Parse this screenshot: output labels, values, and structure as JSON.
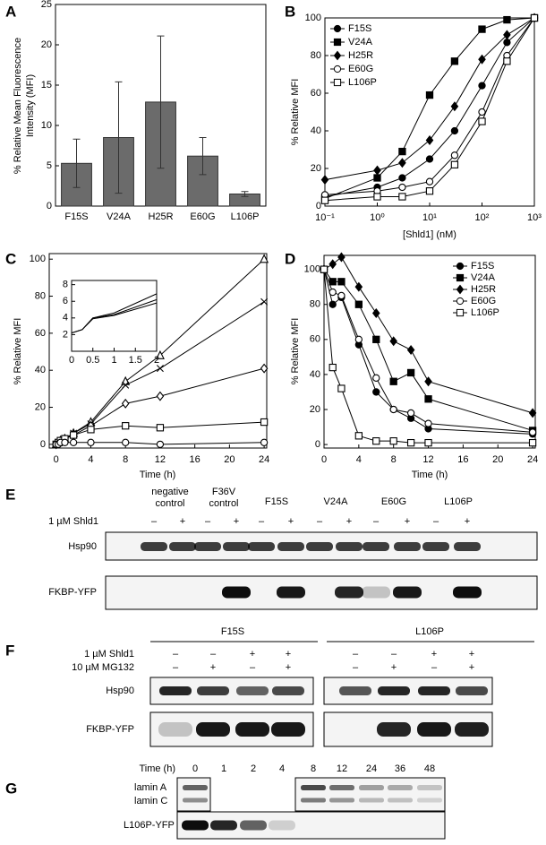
{
  "chart_data": [
    {
      "panel": "A",
      "type": "bar",
      "ylabel": [
        "% Relative Mean Fluorescence",
        "Intensity (MFI)"
      ],
      "categories": [
        "F15S",
        "V24A",
        "H25R",
        "E60G",
        "L106P"
      ],
      "values": [
        5.3,
        8.5,
        12.9,
        6.2,
        1.5
      ],
      "errors": [
        3.0,
        6.9,
        8.2,
        2.3,
        0.3
      ],
      "color": "#6b6b6b",
      "ylim": [
        0,
        25
      ],
      "yticks": [
        0,
        5,
        10,
        15,
        20,
        25
      ]
    },
    {
      "panel": "B",
      "type": "line",
      "xlog": true,
      "xlabel": "[Shld1] (nM)",
      "ylabel": "% Relative MFI",
      "x": [
        0.1,
        1,
        3,
        10,
        30,
        100,
        300,
        1000
      ],
      "xlim": [
        0.1,
        1000
      ],
      "xticks": [
        {
          "value": 0.1,
          "label": "10⁻¹"
        },
        {
          "value": 1,
          "label": "10⁰"
        },
        {
          "value": 10,
          "label": "10¹"
        },
        {
          "value": 100,
          "label": "10²"
        },
        {
          "value": 1000,
          "label": "10³"
        }
      ],
      "ylim": [
        0,
        100
      ],
      "yticks": [
        0,
        20,
        40,
        60,
        80,
        100
      ],
      "legend": "upper left",
      "series": [
        {
          "name": "F15S",
          "color": "#000000",
          "marker": "filled-circle",
          "values": [
            5,
            10,
            15,
            25,
            40,
            64,
            87,
            100
          ]
        },
        {
          "name": "V24A",
          "color": "#000000",
          "marker": "filled-square",
          "values": [
            4,
            15,
            29,
            59,
            77,
            94,
            99,
            100
          ]
        },
        {
          "name": "H25R",
          "color": "#000000",
          "marker": "diamond",
          "values": [
            14,
            19,
            23,
            35,
            53,
            78,
            91,
            100
          ]
        },
        {
          "name": "E60G",
          "color": "#000000",
          "marker": "open-circle",
          "values": [
            6,
            8,
            10,
            13,
            27,
            50,
            80,
            100
          ]
        },
        {
          "name": "L106P",
          "color": "#000000",
          "marker": "open-square",
          "values": [
            3,
            5,
            5,
            8,
            22,
            45,
            77,
            100
          ]
        }
      ]
    },
    {
      "panel": "C",
      "type": "line",
      "xlabel": "Time (h)",
      "ylabel": "% Relative MFI",
      "x": [
        0,
        0.25,
        0.5,
        1,
        2,
        4,
        8,
        12,
        24
      ],
      "xlim": [
        -0.8,
        24.3
      ],
      "xticks": [
        0,
        4,
        8,
        12,
        16,
        20,
        24
      ],
      "ylim": [
        -2,
        103
      ],
      "yticks": [
        0,
        20,
        40,
        60,
        80,
        100
      ],
      "series": [
        {
          "color": "#000000",
          "marker": "open-triangle",
          "values": [
            0,
            1,
            2,
            3,
            6,
            12,
            34,
            48,
            100
          ]
        },
        {
          "color": "#000000",
          "marker": "cross",
          "values": [
            0,
            1,
            2,
            3,
            6,
            11,
            32,
            41,
            77
          ]
        },
        {
          "color": "#000000",
          "marker": "diamond-open",
          "values": [
            0,
            1,
            2,
            3,
            5,
            10,
            22,
            26,
            41
          ]
        },
        {
          "color": "#000000",
          "marker": "open-square-dot",
          "values": [
            0,
            1,
            2,
            3,
            5,
            8,
            10,
            9,
            12
          ]
        },
        {
          "color": "#000000",
          "marker": "open-circle",
          "values": [
            0,
            0,
            1,
            1,
            1,
            1,
            1,
            0,
            1
          ]
        }
      ],
      "inset": {
        "type": "line",
        "x": [
          0,
          0.25,
          0.5,
          1,
          2
        ],
        "xlim": [
          0,
          2
        ],
        "xticks": [
          0,
          0.5,
          1,
          1.5,
          2
        ],
        "ylim": [
          0,
          8.5
        ],
        "yticks": [
          2,
          4,
          6,
          8
        ],
        "series": [
          {
            "color": "#000000",
            "values": [
              2.2,
              2.6,
              4.0,
              4.6,
              6.9
            ]
          },
          {
            "color": "#000000",
            "values": [
              2.2,
              2.6,
              4.0,
              4.4,
              6.2
            ]
          },
          {
            "color": "#000000",
            "values": [
              2.2,
              2.6,
              3.9,
              4.3,
              5.8
            ]
          }
        ]
      }
    },
    {
      "panel": "D",
      "type": "line",
      "xlabel": "Time (h)",
      "ylabel": "% Relative MFI",
      "x": [
        0,
        1,
        2,
        4,
        6,
        8,
        10,
        12,
        24
      ],
      "xlim": [
        0,
        24.3
      ],
      "xticks": [
        0,
        4,
        8,
        12,
        16,
        20,
        24
      ],
      "ylim": [
        -2,
        108
      ],
      "yticks": [
        0,
        20,
        40,
        60,
        80,
        100
      ],
      "legend": "upper right",
      "series": [
        {
          "name": "F15S",
          "color": "#000000",
          "marker": "filled-circle",
          "values": [
            100,
            80,
            84,
            57,
            30,
            20,
            15,
            9,
            6
          ]
        },
        {
          "name": "V24A",
          "color": "#000000",
          "marker": "filled-square",
          "values": [
            100,
            93,
            93,
            80,
            60,
            36,
            41,
            26,
            8
          ]
        },
        {
          "name": "H25R",
          "color": "#000000",
          "marker": "diamond",
          "values": [
            100,
            103,
            107,
            90,
            75,
            59,
            54,
            36,
            18
          ]
        },
        {
          "name": "E60G",
          "color": "#000000",
          "marker": "open-circle",
          "values": [
            100,
            87,
            85,
            60,
            38,
            20,
            18,
            12,
            7
          ]
        },
        {
          "name": "L106P",
          "color": "#000000",
          "marker": "open-square",
          "values": [
            100,
            44,
            32,
            5,
            2,
            2,
            1,
            1,
            1
          ]
        }
      ]
    }
  ],
  "blots": {
    "E": {
      "panel": "E",
      "treatment": "1 µM Shld1",
      "groups": [
        [
          "negative",
          "control"
        ],
        [
          "F36V",
          "control"
        ],
        [
          "F15S"
        ],
        [
          "V24A"
        ],
        [
          "E60G"
        ],
        [
          "L106P"
        ]
      ],
      "signs": [
        "–",
        "+",
        "–",
        "+",
        "–",
        "+",
        "–",
        "+",
        "–",
        "+",
        "–",
        "+"
      ],
      "rows": [
        "Hsp90",
        "FKBP-YFP"
      ]
    },
    "F": {
      "panel": "F",
      "groups": [
        "F15S",
        "L106P"
      ],
      "treatments": [
        {
          "name": "1 µM Shld1",
          "signs": [
            "–",
            "–",
            "+",
            "+",
            "–",
            "–",
            "+",
            "+"
          ]
        },
        {
          "name": "10 µM MG132",
          "signs": [
            "–",
            "+",
            "–",
            "+",
            "–",
            "+",
            "–",
            "+"
          ]
        }
      ],
      "rows": [
        "Hsp90",
        "FKBP-YFP"
      ]
    },
    "G": {
      "panel": "G",
      "time_label": "Time (h)",
      "times": [
        "0",
        "1",
        "2",
        "4",
        "8",
        "12",
        "24",
        "36",
        "48"
      ],
      "rows": [
        "lamin A",
        "lamin C",
        "L106P-YFP"
      ]
    }
  }
}
